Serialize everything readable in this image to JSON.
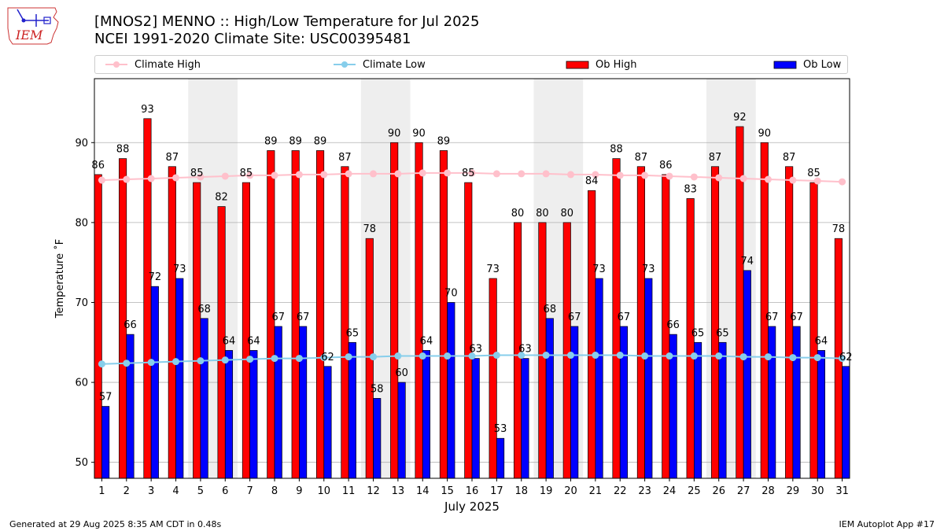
{
  "page": {
    "title_line1": "[MNOS2] MENNO :: High/Low Temperature for Jul 2025",
    "title_line2": "NCEI 1991-2020 Climate Site: USC00395481",
    "logo_text": "IEM",
    "footer_left": "Generated at 29 Aug 2025 8:35 AM CDT in 0.48s",
    "footer_right": "IEM Autoplot App #17"
  },
  "legend": {
    "climate_high": "Climate High",
    "climate_low": "Climate Low",
    "ob_high": "Ob High",
    "ob_low": "Ob Low"
  },
  "colors": {
    "ob_high": "#ff0000",
    "ob_low": "#0000ff",
    "climate_high": "#ffc0cb",
    "climate_low": "#87ceeb",
    "weekend_shade": "#eeeeee",
    "grid": "#b0b0b0"
  },
  "chart_data": {
    "type": "bar",
    "title": "[MNOS2] MENNO :: High/Low Temperature for Jul 2025",
    "subtitle": "NCEI 1991-2020 Climate Site: USC00395481",
    "xlabel": "July 2025",
    "ylabel": "Temperature ˚F",
    "ylim": [
      48,
      98
    ],
    "yticks": [
      50,
      60,
      70,
      80,
      90
    ],
    "grid": "horizontal",
    "legend_position": "top",
    "categories": [
      "1",
      "2",
      "3",
      "4",
      "5",
      "6",
      "7",
      "8",
      "9",
      "10",
      "11",
      "12",
      "13",
      "14",
      "15",
      "16",
      "17",
      "18",
      "19",
      "20",
      "21",
      "22",
      "23",
      "24",
      "25",
      "26",
      "27",
      "28",
      "29",
      "30",
      "31"
    ],
    "shaded_weekends": [
      [
        5,
        6
      ],
      [
        12,
        13
      ],
      [
        19,
        20
      ],
      [
        26,
        27
      ]
    ],
    "series": [
      {
        "name": "Ob High",
        "kind": "bar",
        "values": [
          86,
          88,
          93,
          87,
          85,
          82,
          85,
          89,
          89,
          89,
          87,
          78,
          90,
          90,
          89,
          85,
          73,
          80,
          80,
          80,
          84,
          88,
          87,
          86,
          83,
          87,
          92,
          90,
          87,
          85,
          78
        ]
      },
      {
        "name": "Ob Low",
        "kind": "bar",
        "values": [
          57,
          66,
          72,
          73,
          68,
          64,
          64,
          67,
          67,
          62,
          65,
          58,
          60,
          64,
          70,
          63,
          53,
          63,
          68,
          67,
          73,
          67,
          73,
          66,
          65,
          65,
          74,
          67,
          67,
          64,
          62
        ]
      },
      {
        "name": "Climate High",
        "kind": "line",
        "values": [
          85.3,
          85.4,
          85.5,
          85.6,
          85.7,
          85.8,
          85.9,
          85.9,
          86.0,
          86.0,
          86.1,
          86.1,
          86.1,
          86.2,
          86.2,
          86.2,
          86.1,
          86.1,
          86.1,
          86.0,
          86.0,
          85.9,
          85.9,
          85.8,
          85.7,
          85.6,
          85.5,
          85.4,
          85.3,
          85.2,
          85.1
        ]
      },
      {
        "name": "Climate Low",
        "kind": "line",
        "values": [
          62.3,
          62.4,
          62.5,
          62.6,
          62.7,
          62.8,
          62.9,
          63.0,
          63.0,
          63.1,
          63.2,
          63.2,
          63.3,
          63.3,
          63.3,
          63.3,
          63.4,
          63.4,
          63.4,
          63.4,
          63.4,
          63.4,
          63.3,
          63.3,
          63.3,
          63.3,
          63.2,
          63.2,
          63.1,
          63.1,
          63.0
        ]
      }
    ]
  }
}
